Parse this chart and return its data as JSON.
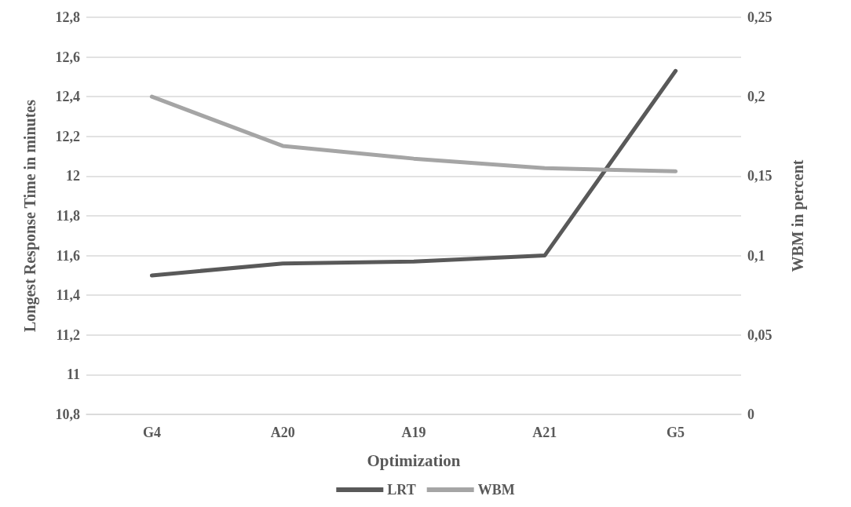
{
  "chart_data": {
    "type": "line",
    "xlabel": "Optimization",
    "ylabel": "Longest Response Time in minutes",
    "y2label": "WBM in percent",
    "categories": [
      "G4",
      "A20",
      "A19",
      "A21",
      "G5"
    ],
    "series": [
      {
        "name": "LRT",
        "color": "#595959",
        "values": [
          11.5,
          11.56,
          11.57,
          11.6,
          12.53
        ]
      },
      {
        "name": "WBM",
        "color": "#a5a5a5",
        "axis": "y2",
        "values": [
          0.2,
          0.169,
          0.161,
          0.155,
          0.153
        ]
      }
    ],
    "ylim": [
      10.8,
      12.8
    ],
    "yticks": [
      {
        "value": 10.8,
        "label": "10,8"
      },
      {
        "value": 11,
        "label": "11"
      },
      {
        "value": 11.2,
        "label": "11,2"
      },
      {
        "value": 11.4,
        "label": "11,4"
      },
      {
        "value": 11.6,
        "label": "11,6"
      },
      {
        "value": 11.8,
        "label": "11,8"
      },
      {
        "value": 12,
        "label": "12"
      },
      {
        "value": 12.2,
        "label": "12,2"
      },
      {
        "value": 12.4,
        "label": "12,4"
      },
      {
        "value": 12.6,
        "label": "12,6"
      },
      {
        "value": 12.8,
        "label": "12,8"
      }
    ],
    "y2lim": [
      0,
      0.25
    ],
    "y2ticks": [
      0,
      {
        "value": 0.05,
        "label": "0,05"
      },
      {
        "value": 0.1,
        "label": "0,1"
      },
      {
        "value": 0.15,
        "label": "0,15"
      },
      {
        "value": 0.2,
        "label": "0,2"
      },
      {
        "value": 0.25,
        "label": "0,25"
      }
    ],
    "grid": "y",
    "legend": "bottom",
    "marker": "none",
    "line_style": "solid"
  }
}
